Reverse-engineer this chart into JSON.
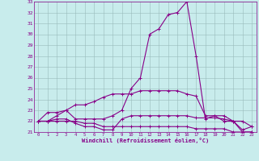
{
  "bg_color": "#c8ecec",
  "line_color": "#880088",
  "marker": "+",
  "markersize": 3,
  "linewidth": 0.8,
  "xlabel": "Windchill (Refroidissement éolien,°C)",
  "xlabel_color": "#880088",
  "grid_color": "#99bbbb",
  "yticks": [
    21,
    22,
    23,
    24,
    25,
    26,
    27,
    28,
    29,
    30,
    31,
    32,
    33
  ],
  "xticks": [
    0,
    1,
    2,
    3,
    4,
    5,
    6,
    7,
    8,
    9,
    10,
    11,
    12,
    13,
    14,
    15,
    16,
    17,
    18,
    19,
    20,
    21,
    22,
    23
  ],
  "ylim": [
    21,
    33
  ],
  "xlim": [
    -0.5,
    23.5
  ],
  "series": [
    [
      22.0,
      22.8,
      22.8,
      23.0,
      22.2,
      22.2,
      22.2,
      22.2,
      22.5,
      23.0,
      25.0,
      26.0,
      30.0,
      30.5,
      31.8,
      32.0,
      33.0,
      28.0,
      22.2,
      22.5,
      22.0,
      22.0,
      21.0,
      21.0
    ],
    [
      22.0,
      22.0,
      22.5,
      23.0,
      23.5,
      23.5,
      23.8,
      24.2,
      24.5,
      24.5,
      24.5,
      24.8,
      24.8,
      24.8,
      24.8,
      24.8,
      24.5,
      24.3,
      22.5,
      22.5,
      22.5,
      22.0,
      22.0,
      21.5
    ],
    [
      22.0,
      22.0,
      22.0,
      22.0,
      22.0,
      21.8,
      21.8,
      21.5,
      21.5,
      21.5,
      21.5,
      21.5,
      21.5,
      21.5,
      21.5,
      21.5,
      21.5,
      21.3,
      21.3,
      21.3,
      21.3,
      21.0,
      21.0,
      21.0
    ],
    [
      22.0,
      22.0,
      22.2,
      22.2,
      21.8,
      21.5,
      21.5,
      21.2,
      21.2,
      22.2,
      22.5,
      22.5,
      22.5,
      22.5,
      22.5,
      22.5,
      22.5,
      22.3,
      22.3,
      22.3,
      22.2,
      22.0,
      21.2,
      21.5
    ]
  ]
}
